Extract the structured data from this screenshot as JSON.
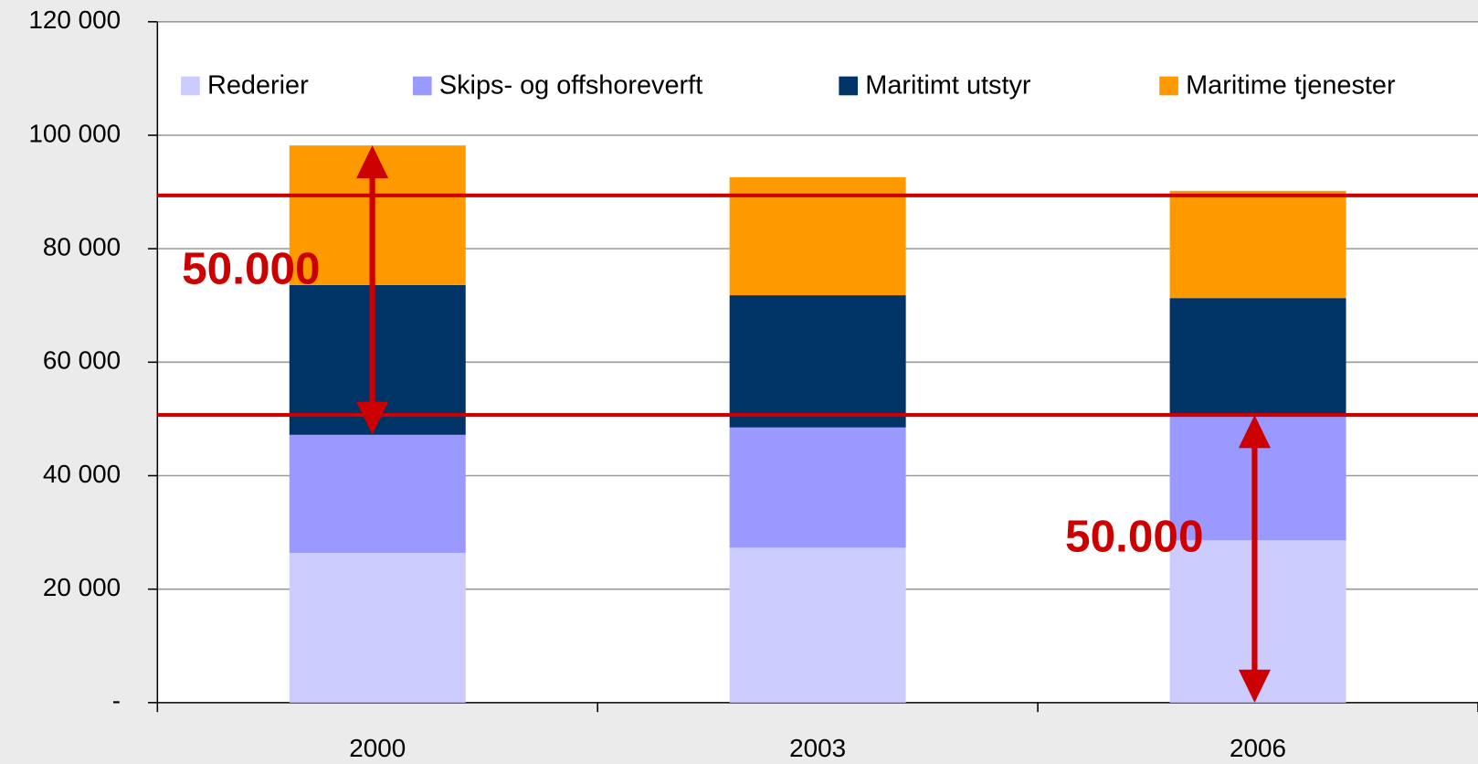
{
  "chart_data": {
    "type": "stacked_bar",
    "categories": [
      "2000",
      "2003",
      "2006"
    ],
    "series": [
      {
        "name": "Rederier",
        "color": "#ccccff",
        "values": [
          26400,
          27300,
          28600
        ]
      },
      {
        "name": "Skips- og offshoreverft",
        "color": "#9999ff",
        "values": [
          20800,
          21200,
          21900
        ]
      },
      {
        "name": "Maritimt utstyr",
        "color": "#003366",
        "values": [
          26400,
          23300,
          20800
        ]
      },
      {
        "name": "Maritime tjenester",
        "color": "#ff9900",
        "values": [
          24600,
          20800,
          18900
        ]
      }
    ],
    "ylim": [
      0,
      120000
    ],
    "yticks": [
      {
        "value": 0,
        "label": "-"
      },
      {
        "value": 20000,
        "label": "20 000"
      },
      {
        "value": 40000,
        "label": "40 000"
      },
      {
        "value": 60000,
        "label": "60 000"
      },
      {
        "value": 80000,
        "label": "80 000"
      },
      {
        "value": 100000,
        "label": "100 000"
      },
      {
        "value": 120000,
        "label": "120 000"
      }
    ],
    "grid": true,
    "legend": "top",
    "reference_lines": [
      89400,
      50700
    ],
    "reference_color": "#cc0000",
    "annotations": [
      "50.000",
      "50.000"
    ]
  }
}
